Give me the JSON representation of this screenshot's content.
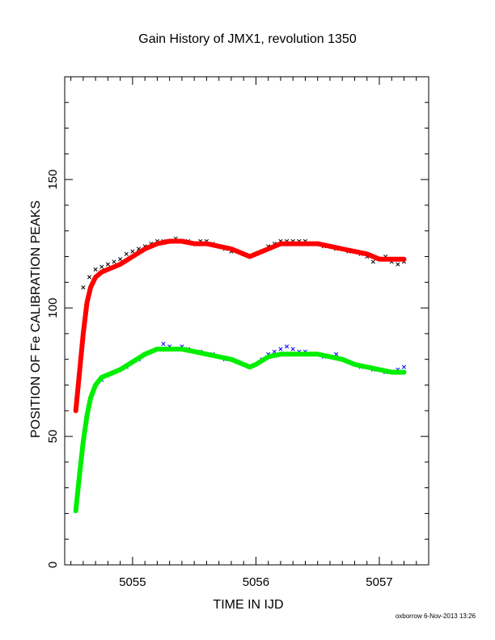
{
  "chart_data": {
    "type": "scatter",
    "title": "Gain History of JMX1, revolution 1350",
    "xlabel": "TIME IN IJD",
    "ylabel": "POSITION OF Fe CALIBRATION PEAKS",
    "xlim": [
      5054.45,
      5057.4
    ],
    "ylim": [
      0,
      190
    ],
    "xticks": [
      5055,
      5056,
      5057
    ],
    "xtick_labels": [
      "5055",
      "5056",
      "5057"
    ],
    "yticks": [
      0,
      50,
      100,
      150
    ],
    "ytick_labels": [
      "0",
      "50",
      "100",
      "150"
    ],
    "grid": false,
    "footer": "oxborrow 6-Nov-2013 13:26",
    "series": [
      {
        "kind": "points",
        "color": "#000000",
        "x": [
          5054.6,
          5054.65,
          5054.7,
          5054.75,
          5054.8,
          5054.85,
          5054.9,
          5054.95,
          5055.0,
          5055.05,
          5055.1,
          5055.15,
          5055.2,
          5055.25,
          5055.3,
          5055.35,
          5055.4,
          5055.45,
          5055.5,
          5055.55,
          5055.6,
          5055.65,
          5055.7,
          5055.75,
          5055.8,
          5055.85,
          5055.9,
          5055.95,
          5056.0,
          5056.05,
          5056.1,
          5056.15,
          5056.2,
          5056.25,
          5056.3,
          5056.35,
          5056.4,
          5056.45,
          5056.5,
          5056.55,
          5056.6,
          5056.65,
          5056.7,
          5056.75,
          5056.8,
          5056.85,
          5056.9,
          5056.95,
          5057.0,
          5057.05,
          5057.1,
          5057.15,
          5057.2
        ],
        "y": [
          108,
          112,
          115,
          116,
          117,
          118,
          119,
          121,
          122,
          123,
          124,
          125,
          126,
          126,
          126,
          127,
          126,
          126,
          125,
          126,
          126,
          125,
          124,
          123,
          122,
          122,
          121,
          120,
          121,
          122,
          124,
          125,
          126,
          126,
          126,
          126,
          126,
          125,
          125,
          124,
          124,
          123,
          123,
          122,
          122,
          121,
          120,
          118,
          119,
          120,
          118,
          117,
          118
        ]
      },
      {
        "kind": "smooth",
        "color": "#ff0000",
        "x": [
          5054.54,
          5054.57,
          5054.6,
          5054.63,
          5054.66,
          5054.7,
          5054.75,
          5054.8,
          5054.9,
          5055.0,
          5055.1,
          5055.2,
          5055.3,
          5055.4,
          5055.5,
          5055.6,
          5055.7,
          5055.8,
          5055.9,
          5055.95,
          5056.0,
          5056.1,
          5056.2,
          5056.3,
          5056.4,
          5056.5,
          5056.6,
          5056.7,
          5056.8,
          5056.9,
          5057.0,
          5057.1,
          5057.2
        ],
        "y": [
          60,
          75,
          90,
          102,
          108,
          112,
          114,
          115,
          117,
          120,
          123,
          125,
          126,
          126,
          125,
          125,
          124,
          123,
          121,
          120,
          121,
          123,
          125,
          125,
          125,
          125,
          124,
          123,
          122,
          121,
          119,
          119,
          119
        ]
      },
      {
        "kind": "points",
        "color": "#0000ff",
        "x": [
          5054.75,
          5054.8,
          5054.85,
          5054.9,
          5054.95,
          5055.0,
          5055.05,
          5055.1,
          5055.15,
          5055.2,
          5055.25,
          5055.3,
          5055.35,
          5055.4,
          5055.45,
          5055.5,
          5055.55,
          5055.6,
          5055.65,
          5055.7,
          5055.75,
          5055.8,
          5055.85,
          5055.9,
          5055.95,
          5056.0,
          5056.05,
          5056.1,
          5056.15,
          5056.2,
          5056.25,
          5056.3,
          5056.35,
          5056.4,
          5056.45,
          5056.5,
          5056.55,
          5056.6,
          5056.65,
          5056.7,
          5056.75,
          5056.8,
          5056.85,
          5056.9,
          5056.95,
          5057.0,
          5057.05,
          5057.1,
          5057.15,
          5057.2
        ],
        "y": [
          72,
          74,
          75,
          76,
          77,
          79,
          80,
          82,
          83,
          84,
          86,
          85,
          84,
          85,
          84,
          83,
          83,
          82,
          82,
          81,
          80,
          80,
          79,
          78,
          77,
          78,
          80,
          82,
          83,
          84,
          85,
          84,
          83,
          83,
          82,
          82,
          81,
          81,
          82,
          80,
          79,
          78,
          77,
          77,
          76,
          76,
          75,
          75,
          76,
          77
        ]
      },
      {
        "kind": "smooth",
        "color": "#00ee00",
        "x": [
          5054.54,
          5054.57,
          5054.6,
          5054.63,
          5054.66,
          5054.7,
          5054.75,
          5054.8,
          5054.9,
          5055.0,
          5055.1,
          5055.2,
          5055.3,
          5055.4,
          5055.5,
          5055.6,
          5055.7,
          5055.8,
          5055.9,
          5055.95,
          5056.0,
          5056.1,
          5056.2,
          5056.3,
          5056.4,
          5056.5,
          5056.6,
          5056.7,
          5056.8,
          5056.9,
          5057.0,
          5057.1,
          5057.2
        ],
        "y": [
          21,
          35,
          48,
          58,
          65,
          70,
          73,
          74,
          76,
          79,
          82,
          84,
          84,
          84,
          83,
          82,
          81,
          80,
          78,
          77,
          78,
          81,
          82,
          82,
          82,
          82,
          81,
          80,
          78,
          77,
          76,
          75,
          75
        ]
      }
    ]
  }
}
